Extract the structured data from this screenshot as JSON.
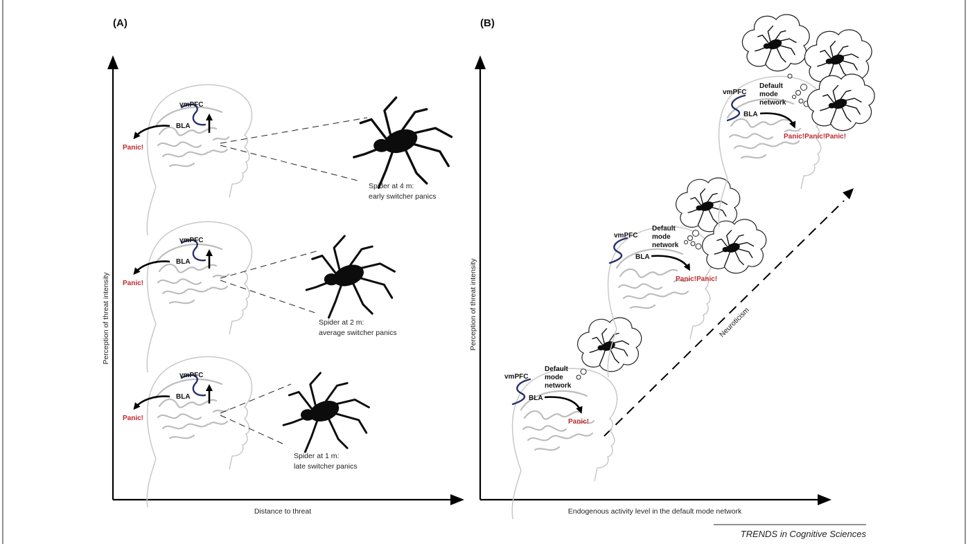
{
  "panel_a": {
    "label": "(A)",
    "y_axis_label": "Perception of threat intensity",
    "x_axis_label": "Distance to threat",
    "scenes": [
      {
        "vmpfc": "vmPFC",
        "bla": "BLA",
        "panic": "Panic!",
        "caption_line1": "Spider at 4 m:",
        "caption_line2": "early switcher panics"
      },
      {
        "vmpfc": "vmPFC",
        "bla": "BLA",
        "panic": "Panic!",
        "caption_line1": "Spider at 2 m:",
        "caption_line2": "average switcher panics"
      },
      {
        "vmpfc": "vmPFC",
        "bla": "BLA",
        "panic": "Panic!",
        "caption_line1": "Spider at 1 m:",
        "caption_line2": "late switcher panics"
      }
    ]
  },
  "panel_b": {
    "label": "(B)",
    "y_axis_label": "Perception of threat intensity",
    "x_axis_label": "Endogenous activity level in the default mode network",
    "trend_label": "Neuroticism",
    "scenes": [
      {
        "vmpfc": "vmPFC",
        "bla": "BLA",
        "dmn_line1": "Default",
        "dmn_line2": "mode",
        "dmn_line3": "network",
        "panic": "Panic!",
        "thoughts": 1
      },
      {
        "vmpfc": "vmPFC",
        "bla": "BLA",
        "dmn_line1": "Default",
        "dmn_line2": "mode",
        "dmn_line3": "network",
        "panic": "Panic!Panic!",
        "thoughts": 2
      },
      {
        "vmpfc": "vmPFC",
        "bla": "BLA",
        "dmn_line1": "Default",
        "dmn_line2": "mode",
        "dmn_line3": "network",
        "panic": "Panic!Panic!Panic!",
        "thoughts": 3
      }
    ]
  },
  "footer": {
    "journal": "TRENDS in Cognitive Sciences"
  },
  "colors": {
    "panic_text": "#c0282d",
    "wave": "#2a2f6e",
    "brain_gray": "#bdbdbd",
    "ink": "#000000"
  },
  "icons": {
    "spider": "spider-silhouette",
    "thought": "thought-cloud",
    "head": "head-profile"
  }
}
